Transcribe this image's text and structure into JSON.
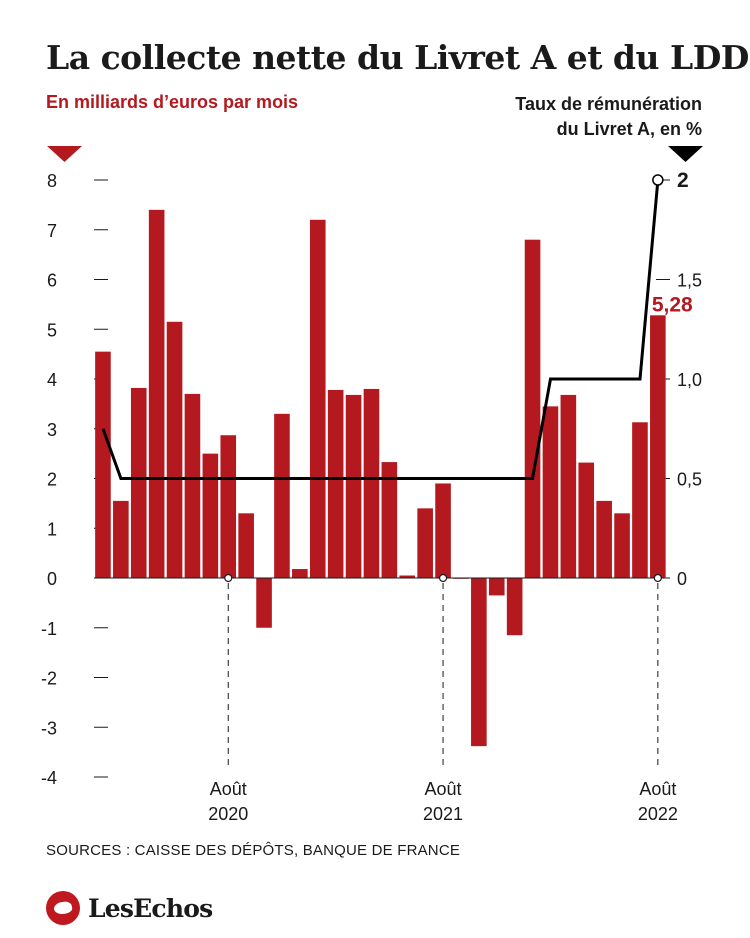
{
  "header": {
    "title": "La collecte nette du Livret A et du LDDS",
    "left_axis_caption": "En milliards d’euros par mois",
    "right_axis_caption_line1": "Taux de rémunération",
    "right_axis_caption_line2": "du Livret A, en %"
  },
  "footer": {
    "source": "SOURCES : CAISSE DES DÉPÔTS, BANQUE DE FRANCE",
    "brand": "LesEchos"
  },
  "colors": {
    "bars": "#b3191f",
    "rate_line": "#000000",
    "axis_text": "#1a1a1a"
  },
  "chart_data": {
    "type": "bar",
    "bar_series": {
      "name": "Collecte nette",
      "values": [
        4.55,
        1.55,
        3.82,
        7.4,
        5.15,
        3.7,
        2.5,
        2.87,
        1.3,
        -1.0,
        3.3,
        0.18,
        7.2,
        3.78,
        3.68,
        3.8,
        2.33,
        0.05,
        1.4,
        1.9,
        0.0,
        -3.38,
        -0.35,
        -1.15,
        6.8,
        3.45,
        3.68,
        2.32,
        1.55,
        1.3,
        3.13,
        5.28
      ]
    },
    "line_series": {
      "name": "Taux de rémunération du Livret A",
      "values": [
        0.75,
        0.5,
        0.5,
        0.5,
        0.5,
        0.5,
        0.5,
        0.5,
        0.5,
        0.5,
        0.5,
        0.5,
        0.5,
        0.5,
        0.5,
        0.5,
        0.5,
        0.5,
        0.5,
        0.5,
        0.5,
        0.5,
        0.5,
        0.5,
        0.5,
        1.0,
        1.0,
        1.0,
        1.0,
        1.0,
        1.0,
        2.0
      ]
    },
    "left_axis": {
      "ylim": [
        -4,
        8
      ],
      "ticks": [
        "8",
        "7",
        "6",
        "5",
        "4",
        "3",
        "2",
        "1",
        "0",
        "-1",
        "-2",
        "-3",
        "-4"
      ]
    },
    "right_axis": {
      "ylim": [
        0,
        2
      ],
      "ticks": [
        "0",
        "0,5",
        "1,0",
        "1,5",
        "2"
      ]
    },
    "x_markers": [
      {
        "index": 7,
        "month": "Août",
        "year": "2020"
      },
      {
        "index": 19,
        "month": "Août",
        "year": "2021"
      },
      {
        "index": 31,
        "month": "Août",
        "year": "2022"
      }
    ],
    "last_bar_label": "5,28",
    "grid": false
  }
}
